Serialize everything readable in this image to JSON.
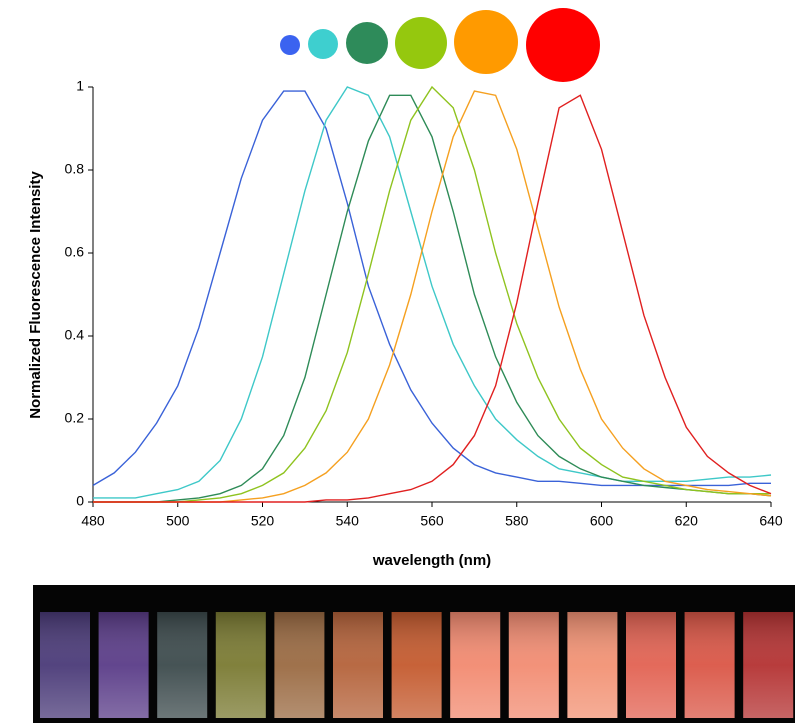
{
  "chart_data": {
    "type": "line",
    "x_label": "wavelength (nm)",
    "y_label": "Normalized Fluorescence Intensity",
    "x": [
      480,
      485,
      490,
      495,
      500,
      505,
      510,
      515,
      520,
      525,
      530,
      535,
      540,
      545,
      550,
      555,
      560,
      565,
      570,
      575,
      580,
      585,
      590,
      595,
      600,
      605,
      610,
      615,
      620,
      625,
      630,
      635,
      640
    ],
    "series": [
      {
        "color": "#3a62d8",
        "values": [
          0.04,
          0.07,
          0.12,
          0.19,
          0.28,
          0.42,
          0.6,
          0.78,
          0.92,
          0.99,
          0.99,
          0.9,
          0.72,
          0.52,
          0.38,
          0.27,
          0.19,
          0.13,
          0.09,
          0.07,
          0.06,
          0.05,
          0.05,
          0.045,
          0.04,
          0.04,
          0.04,
          0.04,
          0.04,
          0.04,
          0.04,
          0.045,
          0.045
        ]
      },
      {
        "color": "#3ec8c8",
        "values": [
          0.01,
          0.01,
          0.01,
          0.02,
          0.03,
          0.05,
          0.1,
          0.2,
          0.35,
          0.55,
          0.75,
          0.92,
          1.0,
          0.98,
          0.88,
          0.7,
          0.52,
          0.38,
          0.28,
          0.2,
          0.15,
          0.11,
          0.08,
          0.07,
          0.06,
          0.05,
          0.05,
          0.05,
          0.05,
          0.055,
          0.06,
          0.06,
          0.065
        ]
      },
      {
        "color": "#2e8b57",
        "values": [
          0,
          0,
          0,
          0,
          0.005,
          0.01,
          0.02,
          0.04,
          0.08,
          0.16,
          0.3,
          0.5,
          0.7,
          0.87,
          0.98,
          0.98,
          0.88,
          0.7,
          0.5,
          0.35,
          0.24,
          0.16,
          0.11,
          0.08,
          0.06,
          0.05,
          0.04,
          0.035,
          0.03,
          0.025,
          0.02,
          0.02,
          0.015
        ]
      },
      {
        "color": "#8fc31f",
        "values": [
          0,
          0,
          0,
          0,
          0,
          0.005,
          0.01,
          0.02,
          0.04,
          0.07,
          0.13,
          0.22,
          0.36,
          0.55,
          0.75,
          0.92,
          1.0,
          0.95,
          0.8,
          0.6,
          0.43,
          0.3,
          0.2,
          0.13,
          0.09,
          0.06,
          0.05,
          0.04,
          0.03,
          0.025,
          0.02,
          0.02,
          0.02
        ]
      },
      {
        "color": "#f5a020",
        "values": [
          0,
          0,
          0,
          0,
          0,
          0,
          0,
          0.005,
          0.01,
          0.02,
          0.04,
          0.07,
          0.12,
          0.2,
          0.33,
          0.5,
          0.7,
          0.88,
          0.99,
          0.98,
          0.85,
          0.66,
          0.47,
          0.32,
          0.2,
          0.13,
          0.08,
          0.05,
          0.04,
          0.03,
          0.025,
          0.02,
          0.015
        ]
      },
      {
        "color": "#e02020",
        "values": [
          0,
          0,
          0,
          0,
          0,
          0,
          0,
          0,
          0,
          0,
          0,
          0.005,
          0.005,
          0.01,
          0.02,
          0.03,
          0.05,
          0.09,
          0.16,
          0.28,
          0.48,
          0.72,
          0.95,
          0.98,
          0.85,
          0.65,
          0.45,
          0.3,
          0.18,
          0.11,
          0.07,
          0.04,
          0.02
        ]
      }
    ],
    "xlim": [
      480,
      640
    ],
    "ylim": [
      0,
      1
    ],
    "xticks": [
      480,
      500,
      520,
      540,
      560,
      580,
      600,
      620,
      640
    ],
    "yticks": [
      0,
      0.2,
      0.4,
      0.6,
      0.8,
      1
    ]
  }
}
